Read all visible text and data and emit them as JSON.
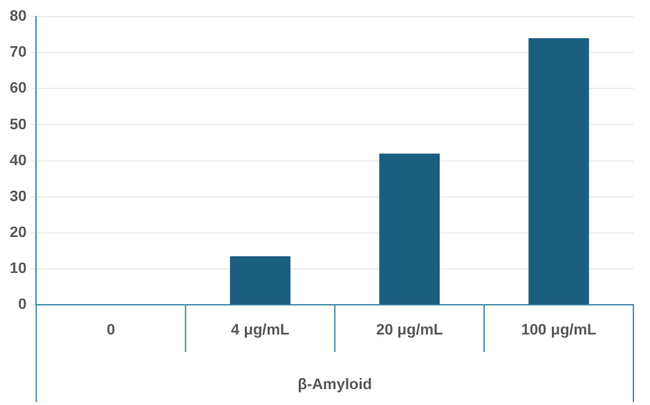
{
  "chart_data": {
    "type": "bar",
    "xlabel": "β-Amyloid",
    "categories": [
      "0",
      "4 μg/mL",
      "20 μg/mL",
      "100 μg/mL"
    ],
    "values": [
      0,
      13.5,
      42,
      74
    ],
    "color": "#1a5e80",
    "ylim": [
      0,
      80
    ],
    "yticks": [
      0,
      10,
      20,
      30,
      40,
      50,
      60,
      70,
      80
    ],
    "grid": "y",
    "legend": false
  }
}
